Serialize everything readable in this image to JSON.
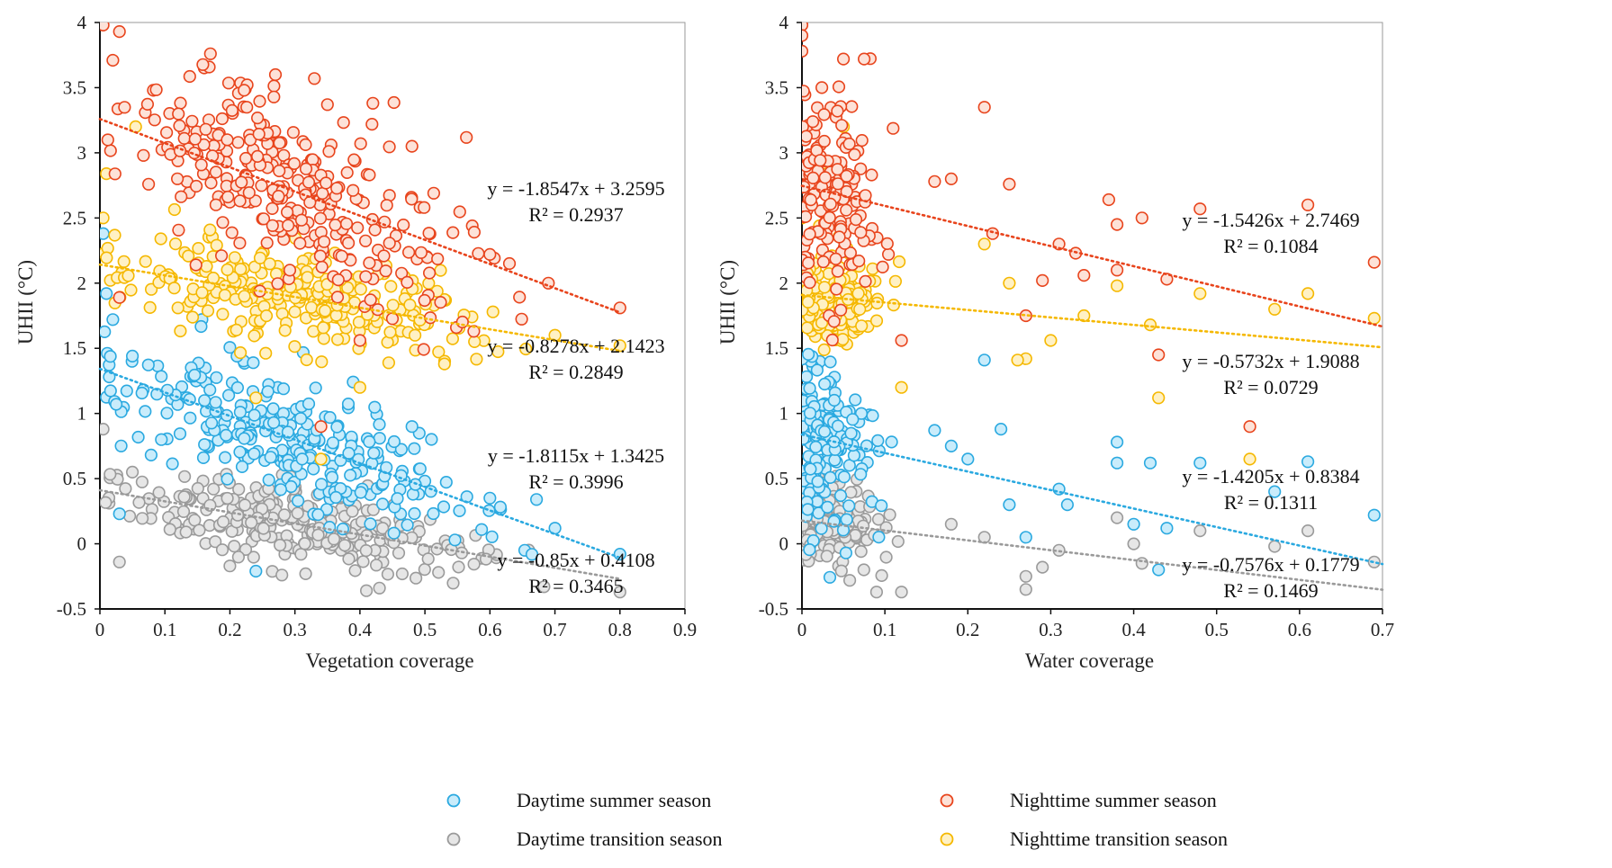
{
  "chart_data": [
    {
      "type": "scatter",
      "xlabel": "Vegetation coverage",
      "ylabel": "UHII (°C)",
      "xlim": [
        0,
        0.9
      ],
      "ylim": [
        -0.5,
        4
      ],
      "x_ticks": [
        "0",
        "0.1",
        "0.2",
        "0.3",
        "0.4",
        "0.5",
        "0.6",
        "0.7",
        "0.8",
        "0.9"
      ],
      "y_ticks": [
        "-0.5",
        "0",
        "0.5",
        "1",
        "1.5",
        "2",
        "2.5",
        "3",
        "3.5",
        "4"
      ],
      "grid": false,
      "series": [
        {
          "name": "Nighttime summer season",
          "color": "#e8441c",
          "fill": "#fde2d8",
          "trend": {
            "slope": -1.8547,
            "intercept": 3.2595,
            "x_range": [
              0,
              0.8
            ]
          },
          "equation": "y = -1.8547x + 3.2595",
          "r2": "R² = 0.2937",
          "cluster": {
            "x_center": 0.3,
            "x_spread": 0.13,
            "x_min": 0.005,
            "x_max": 0.8,
            "sd": 0.33,
            "n": 300
          },
          "points": [
            [
              0.005,
              3.98
            ],
            [
              0.03,
              3.93
            ],
            [
              0.02,
              3.71
            ],
            [
              0.17,
              3.76
            ],
            [
              0.27,
              3.6
            ],
            [
              0.33,
              3.57
            ],
            [
              0.35,
              3.37
            ],
            [
              0.42,
              3.38
            ],
            [
              0.48,
              3.05
            ],
            [
              0.6,
              2.22
            ],
            [
              0.63,
              2.15
            ],
            [
              0.69,
              2.0
            ],
            [
              0.8,
              1.81
            ],
            [
              0.03,
              1.89
            ],
            [
              0.34,
              0.9
            ],
            [
              0.4,
              1.56
            ]
          ]
        },
        {
          "name": "Nighttime transition season",
          "color": "#f5b800",
          "fill": "#fff1c4",
          "trend": {
            "slope": -0.8278,
            "intercept": 2.1423,
            "x_range": [
              0,
              0.8
            ]
          },
          "equation": "y = -0.8278x + 2.1423",
          "r2": "R² = 0.2849",
          "cluster": {
            "x_center": 0.3,
            "x_spread": 0.14,
            "x_min": 0.005,
            "x_max": 0.8,
            "sd": 0.17,
            "n": 270
          },
          "points": [
            [
              0.01,
              2.84
            ],
            [
              0.055,
              3.2
            ],
            [
              0.005,
              2.5
            ],
            [
              0.7,
              1.6
            ],
            [
              0.8,
              1.52
            ],
            [
              0.53,
              1.38
            ],
            [
              0.4,
              1.2
            ],
            [
              0.34,
              0.65
            ],
            [
              0.24,
              1.12
            ],
            [
              0.12,
              1.81
            ]
          ]
        },
        {
          "name": "Daytime summer season",
          "color": "#2aa9e0",
          "fill": "#c9ecfb",
          "trend": {
            "slope": -1.8115,
            "intercept": 1.3425,
            "x_range": [
              0,
              0.8
            ]
          },
          "equation": "y = -1.8115x + 1.3425",
          "r2": "R² = 0.3996",
          "cluster": {
            "x_center": 0.3,
            "x_spread": 0.13,
            "x_min": 0.005,
            "x_max": 0.8,
            "sd": 0.24,
            "n": 280
          },
          "points": [
            [
              0.005,
              2.38
            ],
            [
              0.01,
              1.92
            ],
            [
              0.02,
              1.72
            ],
            [
              0.05,
              1.44
            ],
            [
              0.025,
              1.07
            ],
            [
              0.03,
              0.23
            ],
            [
              0.24,
              -0.21
            ],
            [
              0.48,
              0.9
            ],
            [
              0.6,
              0.35
            ],
            [
              0.7,
              0.12
            ],
            [
              0.8,
              -0.08
            ]
          ]
        },
        {
          "name": "Daytime transition season",
          "color": "#9a9a9a",
          "fill": "#e6e6e6",
          "trend": {
            "slope": -0.85,
            "intercept": 0.4108,
            "x_range": [
              0,
              0.8
            ]
          },
          "equation": "y = -0.85x + 0.4108",
          "r2": "R² = 0.3465",
          "cluster": {
            "x_center": 0.3,
            "x_spread": 0.14,
            "x_min": 0.005,
            "x_max": 0.8,
            "sd": 0.14,
            "n": 260
          },
          "points": [
            [
              0.005,
              0.88
            ],
            [
              0.03,
              -0.14
            ],
            [
              0.28,
              -0.24
            ],
            [
              0.41,
              -0.36
            ],
            [
              0.43,
              -0.34
            ],
            [
              0.8,
              -0.37
            ],
            [
              0.2,
              -0.17
            ],
            [
              0.05,
              0.55
            ]
          ]
        }
      ]
    },
    {
      "type": "scatter",
      "xlabel": "Water coverage",
      "ylabel": "UHII (°C)",
      "xlim": [
        0,
        0.7
      ],
      "ylim": [
        -0.5,
        4
      ],
      "x_ticks": [
        "0",
        "0.1",
        "0.2",
        "0.3",
        "0.4",
        "0.5",
        "0.6",
        "0.7"
      ],
      "y_ticks": [
        "-0.5",
        "0",
        "0.5",
        "1",
        "1.5",
        "2",
        "2.5",
        "3",
        "3.5",
        "4"
      ],
      "grid": false,
      "series": [
        {
          "name": "Nighttime summer season",
          "color": "#e8441c",
          "fill": "#fde2d8",
          "trend": {
            "slope": -1.5426,
            "intercept": 2.7469,
            "x_range": [
              0,
              0.7
            ]
          },
          "equation": "y = -1.5426x + 2.7469",
          "r2": "R² = 0.1084",
          "cluster": {
            "x_center": 0.03,
            "x_spread": 0.03,
            "x_min": 0.0,
            "x_max": 0.12,
            "sd": 0.38,
            "n": 170
          },
          "points": [
            [
              0.0,
              3.98
            ],
            [
              0.0,
              3.9
            ],
            [
              0.0,
              3.78
            ],
            [
              0.05,
              3.72
            ],
            [
              0.075,
              3.72
            ],
            [
              0.22,
              3.35
            ],
            [
              0.16,
              2.78
            ],
            [
              0.18,
              2.8
            ],
            [
              0.25,
              2.76
            ],
            [
              0.37,
              2.64
            ],
            [
              0.41,
              2.5
            ],
            [
              0.48,
              2.57
            ],
            [
              0.61,
              2.6
            ],
            [
              0.69,
              2.16
            ],
            [
              0.31,
              2.3
            ],
            [
              0.33,
              2.23
            ],
            [
              0.43,
              1.45
            ],
            [
              0.54,
              0.9
            ],
            [
              0.12,
              1.56
            ],
            [
              0.27,
              1.75
            ],
            [
              0.38,
              2.1
            ],
            [
              0.44,
              2.03
            ],
            [
              0.38,
              2.45
            ],
            [
              0.29,
              2.02
            ],
            [
              0.34,
              2.06
            ],
            [
              0.23,
              2.38
            ]
          ]
        },
        {
          "name": "Nighttime transition season",
          "color": "#f5b800",
          "fill": "#fff1c4",
          "trend": {
            "slope": -0.5732,
            "intercept": 1.9088,
            "x_range": [
              0,
              0.7
            ]
          },
          "equation": "y = -0.5732x + 1.9088",
          "r2": "R² = 0.0729",
          "cluster": {
            "x_center": 0.03,
            "x_spread": 0.03,
            "x_min": 0.0,
            "x_max": 0.12,
            "sd": 0.2,
            "n": 160
          },
          "points": [
            [
              0.03,
              2.84
            ],
            [
              0.05,
              3.2
            ],
            [
              0.0,
              2.5
            ],
            [
              0.43,
              1.12
            ],
            [
              0.54,
              0.65
            ],
            [
              0.48,
              1.92
            ],
            [
              0.61,
              1.92
            ],
            [
              0.57,
              1.8
            ],
            [
              0.69,
              1.73
            ],
            [
              0.38,
              1.98
            ],
            [
              0.27,
              1.42
            ],
            [
              0.26,
              1.41
            ],
            [
              0.12,
              1.2
            ],
            [
              0.3,
              1.56
            ],
            [
              0.34,
              1.75
            ],
            [
              0.42,
              1.68
            ],
            [
              0.22,
              2.3
            ],
            [
              0.25,
              2.0
            ]
          ]
        },
        {
          "name": "Daytime summer season",
          "color": "#2aa9e0",
          "fill": "#c9ecfb",
          "trend": {
            "slope": -1.4205,
            "intercept": 0.8384,
            "x_range": [
              0,
              0.7
            ]
          },
          "equation": "y = -1.4205x + 0.8384",
          "r2": "R² = 0.1311",
          "cluster": {
            "x_center": 0.03,
            "x_spread": 0.03,
            "x_min": 0.0,
            "x_max": 0.12,
            "sd": 0.35,
            "n": 160
          },
          "points": [
            [
              0.22,
              1.41
            ],
            [
              0.24,
              0.88
            ],
            [
              0.16,
              0.87
            ],
            [
              0.18,
              0.75
            ],
            [
              0.38,
              0.78
            ],
            [
              0.38,
              0.62
            ],
            [
              0.42,
              0.62
            ],
            [
              0.48,
              0.62
            ],
            [
              0.61,
              0.63
            ],
            [
              0.69,
              0.22
            ],
            [
              0.57,
              0.4
            ],
            [
              0.44,
              0.12
            ],
            [
              0.31,
              0.42
            ],
            [
              0.27,
              0.05
            ],
            [
              0.2,
              0.65
            ],
            [
              0.25,
              0.3
            ],
            [
              0.32,
              0.3
            ],
            [
              0.4,
              0.15
            ],
            [
              0.43,
              -0.2
            ]
          ]
        },
        {
          "name": "Daytime transition season",
          "color": "#9a9a9a",
          "fill": "#e6e6e6",
          "trend": {
            "slope": -0.7576,
            "intercept": 0.1779,
            "x_range": [
              0,
              0.7
            ]
          },
          "equation": "y = -0.7576x + 0.1779",
          "r2": "R² = 0.1469",
          "cluster": {
            "x_center": 0.03,
            "x_spread": 0.035,
            "x_min": 0.0,
            "x_max": 0.13,
            "sd": 0.15,
            "n": 160
          },
          "points": [
            [
              0.27,
              -0.35
            ],
            [
              0.27,
              -0.25
            ],
            [
              0.12,
              -0.37
            ],
            [
              0.09,
              -0.37
            ],
            [
              0.31,
              -0.05
            ],
            [
              0.4,
              0.0
            ],
            [
              0.41,
              -0.15
            ],
            [
              0.48,
              0.1
            ],
            [
              0.57,
              -0.02
            ],
            [
              0.61,
              0.1
            ],
            [
              0.69,
              -0.14
            ],
            [
              0.38,
              0.2
            ],
            [
              0.29,
              -0.18
            ],
            [
              0.22,
              0.05
            ],
            [
              0.18,
              0.15
            ]
          ]
        }
      ]
    }
  ],
  "legend": [
    {
      "label": "Daytime summer season",
      "series": "Daytime summer season"
    },
    {
      "label": "Nighttime summer season",
      "series": "Nighttime summer season"
    },
    {
      "label": "Daytime transition season",
      "series": "Daytime transition season"
    },
    {
      "label": "Nighttime transition season",
      "series": "Nighttime transition season"
    }
  ]
}
